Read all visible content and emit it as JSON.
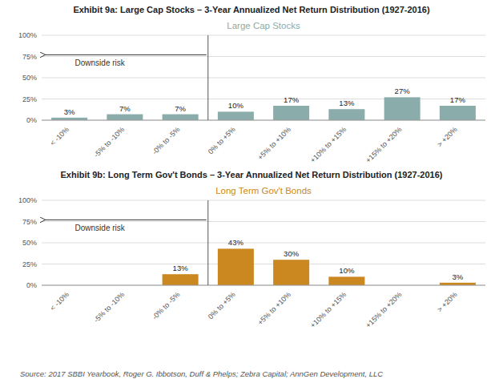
{
  "chart_data": [
    {
      "type": "bar",
      "title": "Exhibit 9a: Large Cap Stocks – 3-Year Annualized Net Return Distribution (1927-2016)",
      "subtitle": "Large Cap Stocks",
      "annotation": "Downside risk",
      "categories": [
        "< -10%",
        "-5% to -10%",
        "-0% to -5%",
        "0% to +5%",
        "+5% to +10%",
        "+10% to +15%",
        "+15% to +20%",
        "> +20%"
      ],
      "values": [
        3,
        7,
        7,
        10,
        17,
        13,
        27,
        17
      ],
      "value_labels": [
        "3%",
        "7%",
        "7%",
        "10%",
        "17%",
        "13%",
        "27%",
        "17%"
      ],
      "data_labels": true,
      "color": "#8aacaa",
      "ylim": [
        0,
        100
      ],
      "yticks": [
        {
          "value": 0,
          "label": "0%"
        },
        {
          "value": 25,
          "label": "25%"
        },
        {
          "value": 50,
          "label": "50%"
        },
        {
          "value": 75,
          "label": "75%"
        },
        {
          "value": 100,
          "label": "100%"
        }
      ],
      "grid": true
    },
    {
      "type": "bar",
      "title": "Exhibit 9b: Long Term Gov't Bonds – 3-Year Annualized Net Return Distribution (1927-2016)",
      "subtitle": "Long Term Gov't Bonds",
      "annotation": "Downside risk",
      "categories": [
        "< -10%",
        "-5% to -10%",
        "-0% to -5%",
        "0% to +5%",
        "+5% to +10%",
        "+10% to +15%",
        "+15% to +20%",
        "> +20%"
      ],
      "values": [
        0,
        0,
        13,
        43,
        30,
        10,
        0,
        3
      ],
      "value_labels": [
        null,
        null,
        "13%",
        "43%",
        "30%",
        "10%",
        null,
        "3%"
      ],
      "data_labels": true,
      "color": "#cc8820",
      "ylim": [
        0,
        100
      ],
      "yticks": [
        {
          "value": 0,
          "label": "0%"
        },
        {
          "value": 25,
          "label": "25%"
        },
        {
          "value": 50,
          "label": "50%"
        },
        {
          "value": 75,
          "label": "75%"
        },
        {
          "value": 100,
          "label": "100%"
        }
      ],
      "grid": true
    }
  ],
  "source": "Source: 2017 SBBI Yearbook, Roger G. Ibbotson, Duff & Phelps; Zebra Capital; AnnGen Development, LLC"
}
